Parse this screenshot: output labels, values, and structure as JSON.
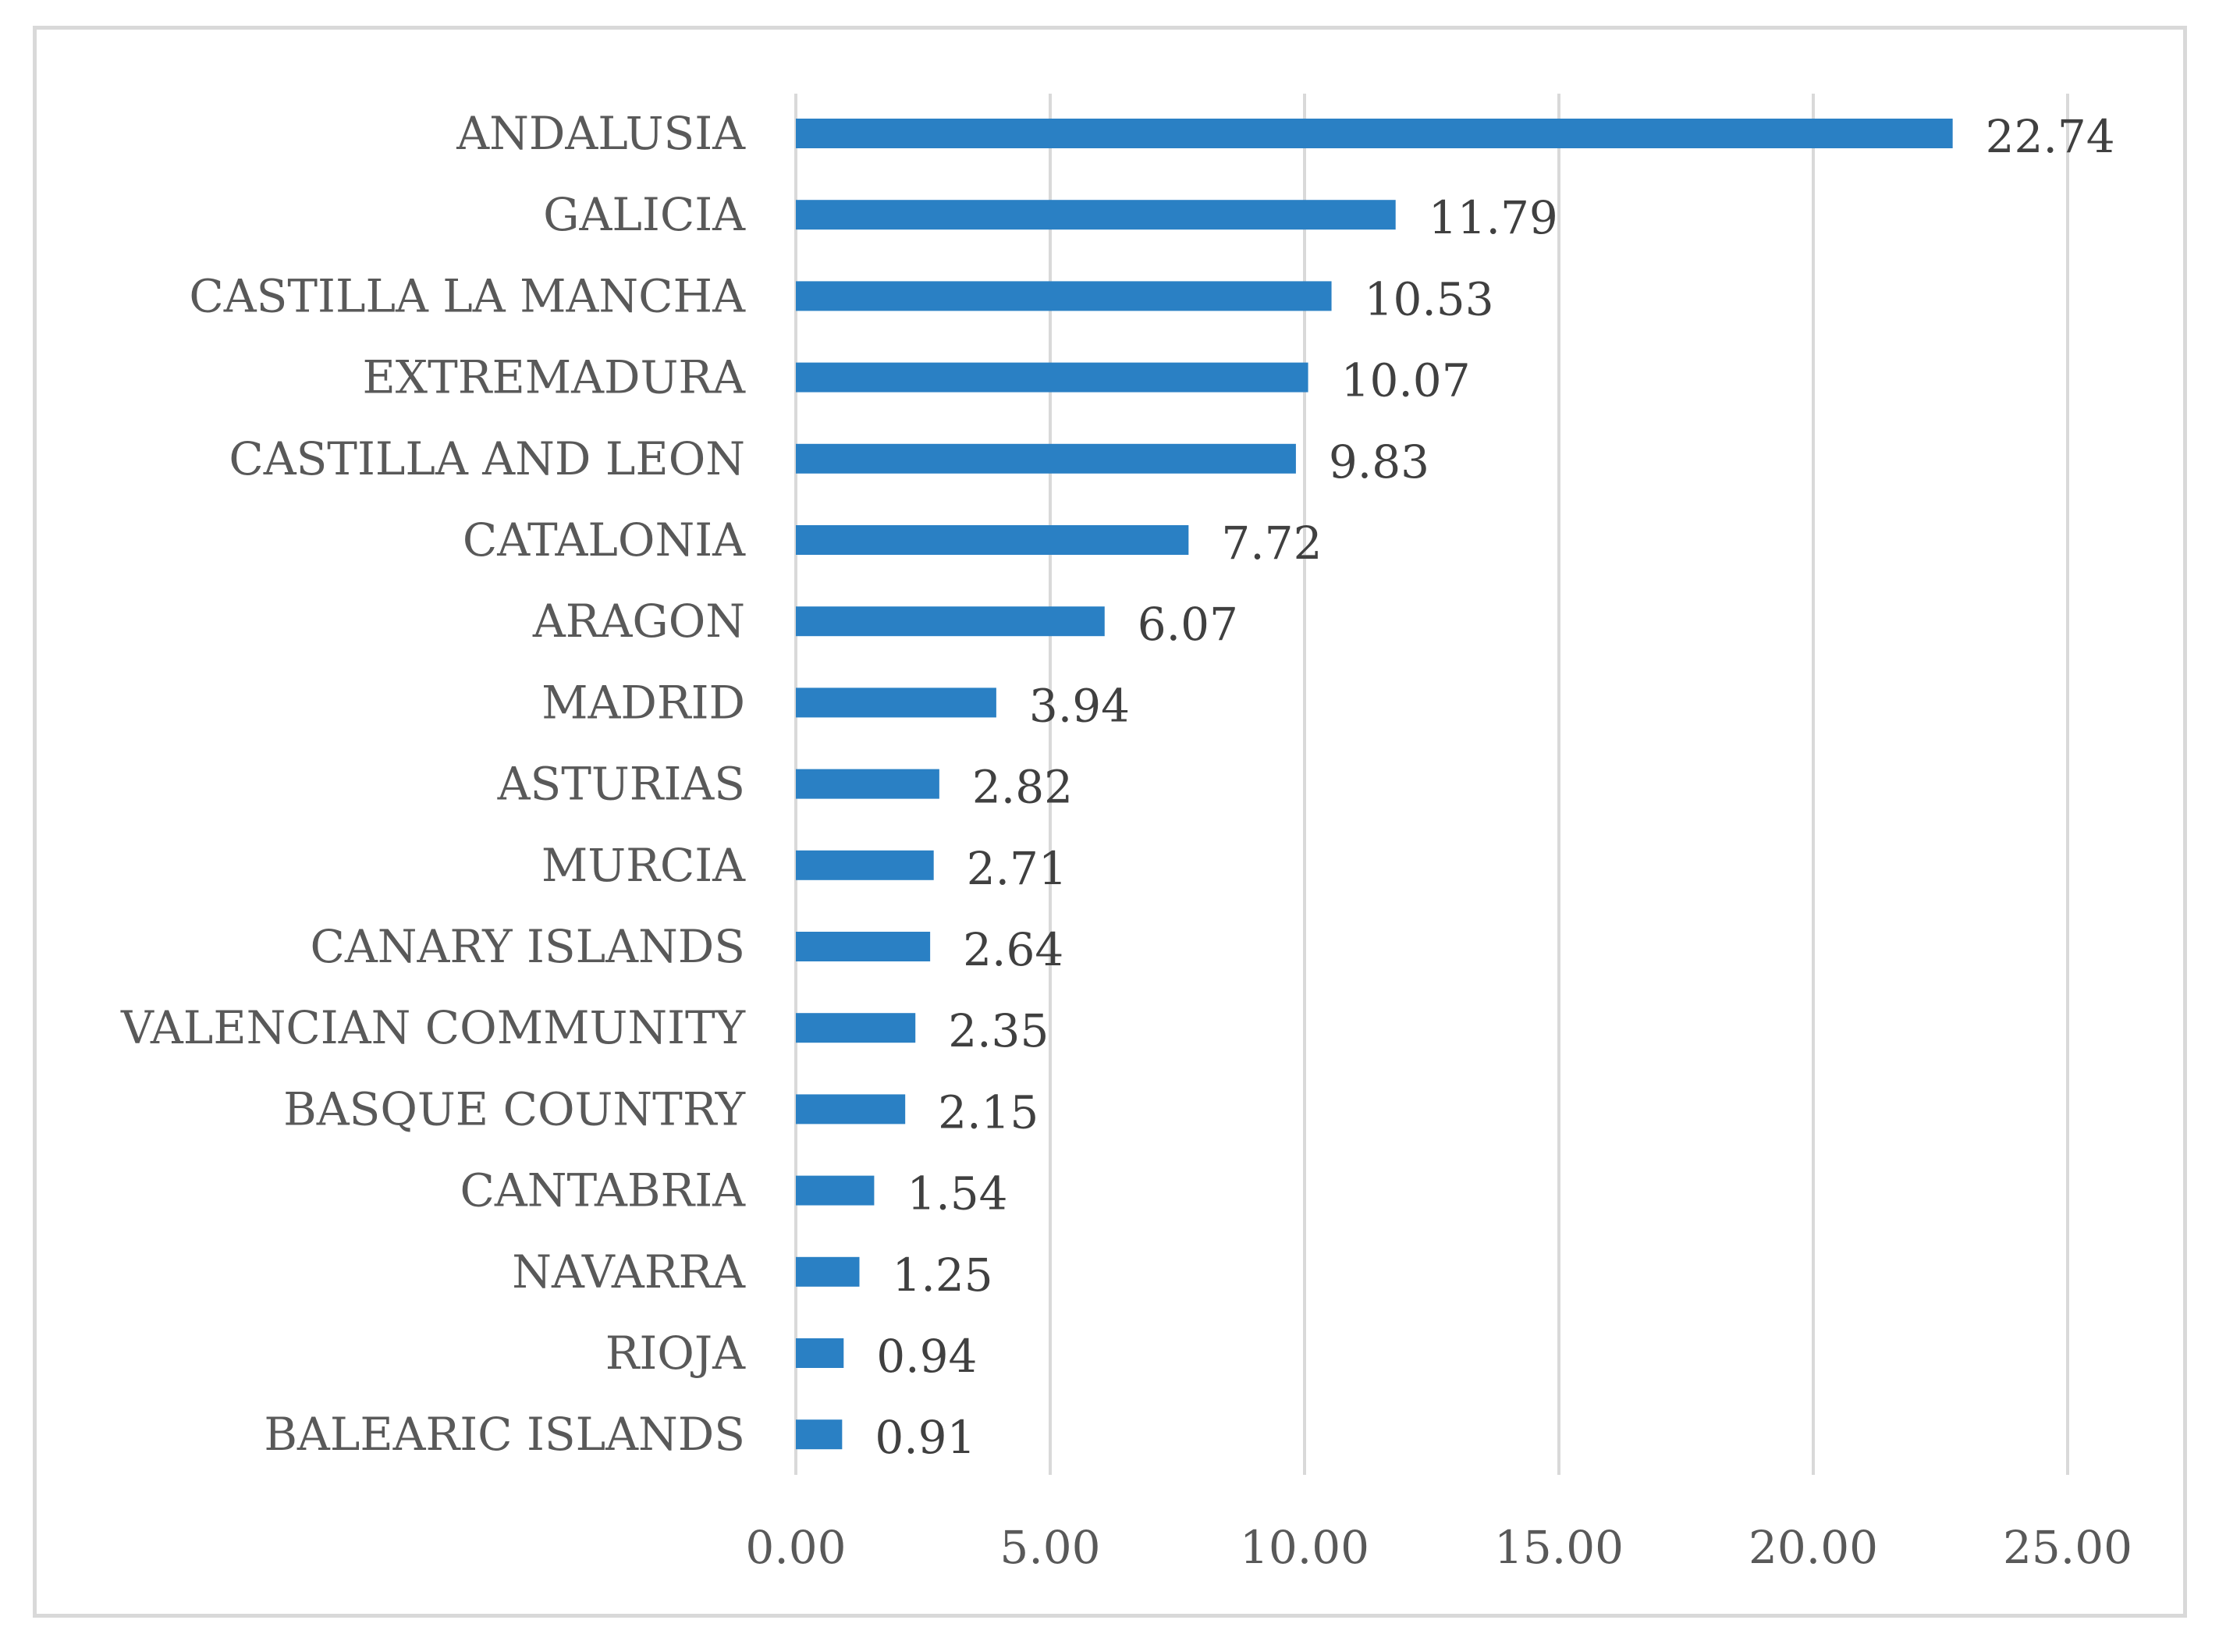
{
  "chart_data": {
    "type": "bar",
    "orientation": "horizontal",
    "title": "",
    "xlabel": "",
    "ylabel": "",
    "categories": [
      "ANDALUSIA",
      "GALICIA",
      "CASTILLA LA MANCHA",
      "EXTREMADURA",
      "CASTILLA AND LEON",
      "CATALONIA",
      "ARAGON",
      "MADRID",
      "ASTURIAS",
      "MURCIA",
      "CANARY ISLANDS",
      "VALENCIAN COMMUNITY",
      "BASQUE COUNTRY",
      "CANTABRIA",
      "NAVARRA",
      "RIOJA",
      "BALEARIC ISLANDS"
    ],
    "values": [
      22.74,
      11.79,
      10.53,
      10.07,
      9.83,
      7.72,
      6.07,
      3.94,
      2.82,
      2.71,
      2.64,
      2.35,
      2.15,
      1.54,
      1.25,
      0.94,
      0.91
    ],
    "value_labels": [
      "22.74",
      "11.79",
      "10.53",
      "10.07",
      "9.83",
      "7.72",
      "6.07",
      "3.94",
      "2.82",
      "2.71",
      "2.64",
      "2.35",
      "2.15",
      "1.54",
      "1.25",
      "0.94",
      "0.91"
    ],
    "xlim": [
      0,
      25
    ],
    "xticks": [
      0,
      5,
      10,
      15,
      20,
      25
    ],
    "xtick_labels": [
      "0.00",
      "5.00",
      "10.00",
      "15.00",
      "20.00",
      "25.00"
    ],
    "grid": true,
    "legend": "none",
    "colors": {
      "bar": "#2a80c4",
      "grid": "#d9d9d9",
      "frame": "#d9d9d9"
    }
  }
}
